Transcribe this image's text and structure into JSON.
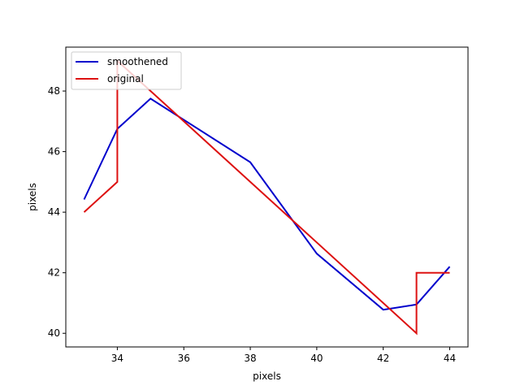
{
  "chart_data": {
    "type": "line",
    "xlabel": "pixels",
    "ylabel": "pixels",
    "xlim": [
      32.45,
      44.55
    ],
    "ylim": [
      39.55,
      49.45
    ],
    "xticks": [
      34,
      36,
      38,
      40,
      42,
      44
    ],
    "yticks": [
      40,
      42,
      44,
      46,
      48
    ],
    "grid": false,
    "legend_position": "top-left",
    "series": [
      {
        "name": "smoothened",
        "color": "#0000cc",
        "x": [
          33,
          34,
          35,
          38,
          40,
          42,
          43,
          44
        ],
        "y": [
          44.42,
          46.75,
          47.75,
          45.65,
          42.63,
          40.78,
          40.95,
          42.2
        ]
      },
      {
        "name": "original",
        "color": "#dd1111",
        "x": [
          33,
          34,
          34,
          35,
          43,
          43,
          44
        ],
        "y": [
          44,
          45,
          49,
          48,
          40,
          42,
          42
        ]
      }
    ]
  }
}
